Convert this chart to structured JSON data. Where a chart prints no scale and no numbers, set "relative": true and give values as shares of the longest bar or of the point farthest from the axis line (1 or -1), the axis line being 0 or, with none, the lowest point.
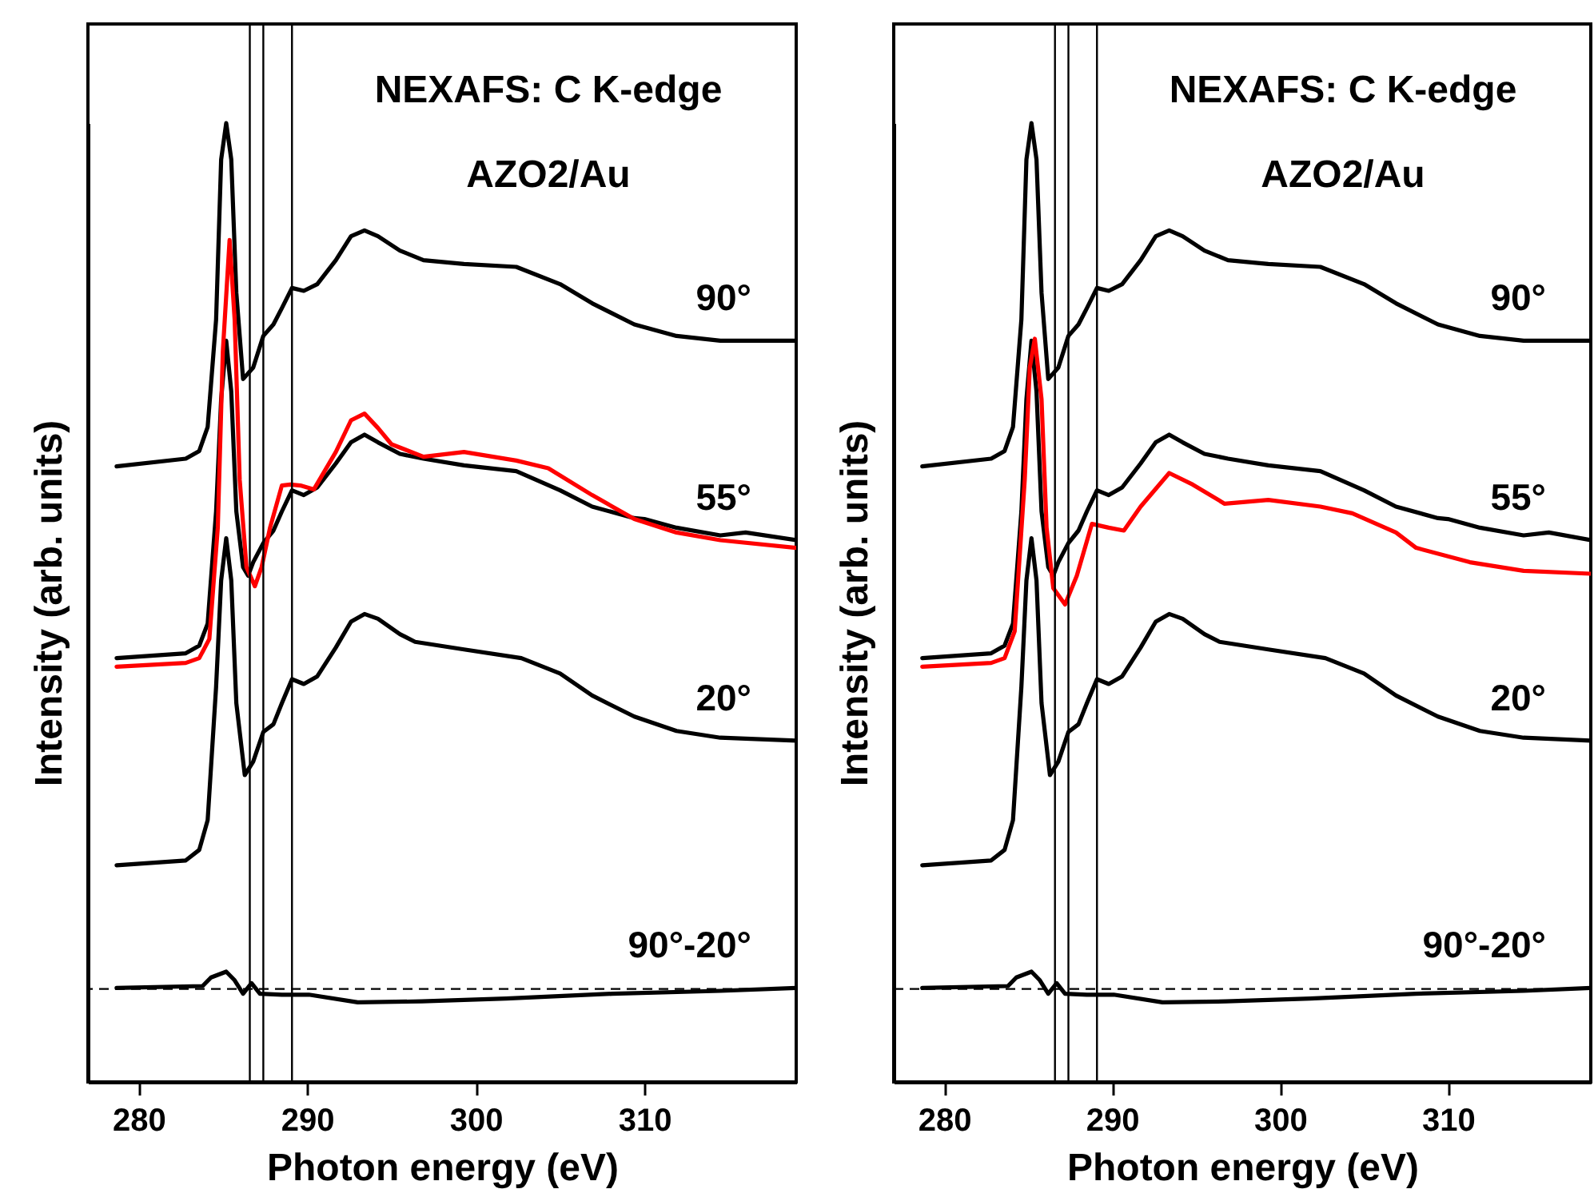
{
  "chart_data": [
    {
      "type": "line",
      "relative": true,
      "xlabel": "Photon energy (eV)",
      "ylabel": "Intensity (arb. units)",
      "xlim": [
        277,
        319
      ],
      "xticks": [
        280,
        290,
        300,
        310
      ],
      "marker": "none",
      "annotations": [
        "NEXAFS: C K-edge",
        "AZO2/Au"
      ],
      "ref_lines": [
        {
          "axis": "x",
          "value": 286.6
        },
        {
          "axis": "x",
          "value": 287.4
        },
        {
          "axis": "x",
          "value": 289.1
        },
        {
          "axis": "y",
          "value": 0.097,
          "line_style": "dashed"
        }
      ],
      "series": [
        {
          "name": "90°",
          "color": "#000000",
          "x": [
            278.7,
            282.8,
            283.6,
            284.1,
            284.6,
            284.9,
            285.2,
            285.5,
            285.8,
            286.2,
            286.8,
            287.4,
            288.0,
            288.5,
            289.1,
            289.8,
            290.6,
            291.7,
            292.6,
            293.4,
            294.2,
            295.5,
            296.9,
            299.3,
            302.4,
            305.0,
            306.9,
            309.4,
            311.9,
            314.5,
            319.0
          ],
          "values": [
            0.642,
            0.65,
            0.658,
            0.683,
            0.795,
            0.962,
            1,
            0.962,
            0.823,
            0.733,
            0.745,
            0.778,
            0.79,
            0.807,
            0.828,
            0.825,
            0.832,
            0.857,
            0.882,
            0.888,
            0.882,
            0.867,
            0.857,
            0.853,
            0.85,
            0.832,
            0.812,
            0.79,
            0.778,
            0.773,
            0.773
          ]
        },
        {
          "name": "55°",
          "color": "#000000",
          "x": [
            278.7,
            282.8,
            283.6,
            284.1,
            284.6,
            284.9,
            285.2,
            285.5,
            285.8,
            286.2,
            286.5,
            286.8,
            287.4,
            288.0,
            288.5,
            289.1,
            289.8,
            290.6,
            291.7,
            292.6,
            293.4,
            294.2,
            295.5,
            296.9,
            299.3,
            302.4,
            305.0,
            306.9,
            309.4,
            310.0,
            311.9,
            314.5,
            316.0,
            319.0
          ],
          "values": [
            0.442,
            0.447,
            0.455,
            0.478,
            0.595,
            0.712,
            0.773,
            0.72,
            0.595,
            0.537,
            0.528,
            0.542,
            0.562,
            0.575,
            0.595,
            0.617,
            0.612,
            0.62,
            0.645,
            0.667,
            0.675,
            0.667,
            0.655,
            0.65,
            0.643,
            0.637,
            0.617,
            0.6,
            0.588,
            0.587,
            0.578,
            0.57,
            0.573,
            0.565
          ]
        },
        {
          "color": "#ff0000",
          "x": [
            278.7,
            282.8,
            283.6,
            284.2,
            284.7,
            285.0,
            285.4,
            285.7,
            286.0,
            286.4,
            286.9,
            287.3,
            287.8,
            288.5,
            289.0,
            289.6,
            290.4,
            291.7,
            292.6,
            293.4,
            294.2,
            295.0,
            296.9,
            299.3,
            302.4,
            304.3,
            306.9,
            309.4,
            311.9,
            314.5,
            319.0
          ],
          "values": [
            0.433,
            0.437,
            0.442,
            0.462,
            0.578,
            0.762,
            0.878,
            0.795,
            0.628,
            0.537,
            0.517,
            0.537,
            0.578,
            0.622,
            0.623,
            0.622,
            0.618,
            0.657,
            0.69,
            0.697,
            0.682,
            0.665,
            0.652,
            0.657,
            0.648,
            0.64,
            0.612,
            0.587,
            0.573,
            0.565,
            0.557
          ]
        },
        {
          "name": "20°",
          "color": "#000000",
          "x": [
            278.7,
            282.8,
            283.6,
            284.1,
            284.6,
            284.9,
            285.2,
            285.5,
            285.8,
            286.3,
            286.8,
            287.4,
            288.0,
            288.5,
            289.1,
            289.8,
            290.6,
            291.7,
            292.6,
            293.4,
            294.2,
            295.5,
            296.4,
            299.3,
            302.7,
            305.0,
            306.9,
            309.4,
            311.9,
            314.5,
            319.0
          ],
          "values": [
            0.226,
            0.231,
            0.242,
            0.273,
            0.412,
            0.523,
            0.567,
            0.523,
            0.395,
            0.32,
            0.334,
            0.365,
            0.373,
            0.395,
            0.42,
            0.415,
            0.423,
            0.453,
            0.48,
            0.488,
            0.483,
            0.467,
            0.459,
            0.451,
            0.442,
            0.426,
            0.403,
            0.381,
            0.366,
            0.359,
            0.356
          ]
        },
        {
          "name": "90°-20°",
          "color": "#000000",
          "x": [
            278.7,
            283.8,
            284.3,
            285.2,
            285.7,
            286.2,
            286.7,
            287.2,
            288.5,
            290.1,
            293.0,
            296.8,
            301.8,
            308.1,
            314.5,
            319.0
          ],
          "values": [
            0.098,
            0.1,
            0.109,
            0.115,
            0.106,
            0.092,
            0.103,
            0.092,
            0.091,
            0.091,
            0.083,
            0.084,
            0.087,
            0.092,
            0.095,
            0.098
          ]
        }
      ]
    },
    {
      "type": "line",
      "relative": true,
      "xlabel": "Photon energy (eV)",
      "ylabel": "Intensity (arb. units)",
      "xlim": [
        277,
        318.5
      ],
      "xticks": [
        280,
        290,
        300,
        310
      ],
      "marker": "none",
      "annotations": [
        "NEXAFS: C K-edge",
        "AZO2/Au"
      ],
      "ref_lines": [
        {
          "axis": "x",
          "value": 286.6
        },
        {
          "axis": "x",
          "value": 287.4
        },
        {
          "axis": "x",
          "value": 289.1
        },
        {
          "axis": "y",
          "value": 0.097,
          "line_style": "dashed"
        }
      ],
      "series": [
        {
          "name": "90°",
          "color": "#000000",
          "x": [
            278.7,
            282.8,
            283.6,
            284.1,
            284.6,
            284.9,
            285.2,
            285.5,
            285.8,
            286.2,
            286.8,
            287.4,
            288.0,
            288.5,
            289.1,
            289.8,
            290.6,
            291.7,
            292.6,
            293.4,
            294.2,
            295.5,
            296.9,
            299.3,
            302.4,
            305.0,
            306.9,
            309.4,
            311.9,
            314.5,
            318.5
          ],
          "values": [
            0.642,
            0.65,
            0.658,
            0.683,
            0.795,
            0.962,
            1,
            0.962,
            0.823,
            0.733,
            0.745,
            0.778,
            0.79,
            0.807,
            0.828,
            0.825,
            0.832,
            0.857,
            0.882,
            0.888,
            0.882,
            0.867,
            0.857,
            0.853,
            0.85,
            0.832,
            0.812,
            0.79,
            0.778,
            0.773,
            0.773
          ]
        },
        {
          "name": "55°",
          "color": "#000000",
          "x": [
            278.7,
            282.8,
            283.6,
            284.1,
            284.6,
            284.9,
            285.2,
            285.5,
            285.8,
            286.2,
            286.5,
            286.8,
            287.4,
            288.0,
            288.5,
            289.1,
            289.8,
            290.6,
            291.7,
            292.6,
            293.4,
            294.2,
            295.5,
            296.9,
            299.3,
            302.4,
            305.0,
            306.9,
            309.4,
            310.0,
            311.9,
            314.5,
            316.0,
            318.5
          ],
          "values": [
            0.442,
            0.447,
            0.455,
            0.478,
            0.595,
            0.712,
            0.773,
            0.72,
            0.595,
            0.537,
            0.528,
            0.542,
            0.562,
            0.575,
            0.595,
            0.617,
            0.612,
            0.62,
            0.645,
            0.667,
            0.675,
            0.667,
            0.655,
            0.65,
            0.643,
            0.637,
            0.617,
            0.6,
            0.588,
            0.587,
            0.578,
            0.57,
            0.573,
            0.565
          ]
        },
        {
          "color": "#ff0000",
          "x": [
            278.7,
            282.8,
            283.6,
            284.2,
            284.8,
            285.1,
            285.4,
            285.8,
            286.1,
            286.5,
            287.2,
            287.9,
            288.8,
            289.8,
            290.7,
            291.7,
            293.4,
            294.8,
            296.7,
            299.3,
            302.4,
            304.3,
            306.9,
            308.1,
            311.3,
            314.5,
            318.5
          ],
          "values": [
            0.433,
            0.437,
            0.442,
            0.47,
            0.628,
            0.745,
            0.775,
            0.712,
            0.578,
            0.515,
            0.498,
            0.528,
            0.582,
            0.578,
            0.575,
            0.6,
            0.635,
            0.623,
            0.603,
            0.607,
            0.6,
            0.593,
            0.573,
            0.557,
            0.542,
            0.533,
            0.53
          ]
        },
        {
          "name": "20°",
          "color": "#000000",
          "x": [
            278.7,
            282.8,
            283.6,
            284.1,
            284.6,
            284.9,
            285.2,
            285.5,
            285.8,
            286.3,
            286.8,
            287.4,
            288.0,
            288.5,
            289.1,
            289.8,
            290.6,
            291.7,
            292.6,
            293.4,
            294.2,
            295.5,
            296.4,
            299.3,
            302.7,
            305.0,
            306.9,
            309.4,
            311.9,
            314.5,
            318.5
          ],
          "values": [
            0.226,
            0.231,
            0.242,
            0.273,
            0.412,
            0.523,
            0.567,
            0.523,
            0.395,
            0.32,
            0.334,
            0.365,
            0.373,
            0.395,
            0.42,
            0.415,
            0.423,
            0.453,
            0.48,
            0.488,
            0.483,
            0.467,
            0.459,
            0.451,
            0.442,
            0.426,
            0.403,
            0.381,
            0.366,
            0.359,
            0.356
          ]
        },
        {
          "name": "90°-20°",
          "color": "#000000",
          "x": [
            278.7,
            283.8,
            284.3,
            285.2,
            285.7,
            286.2,
            286.7,
            287.2,
            288.5,
            290.1,
            293.0,
            296.8,
            301.8,
            308.1,
            314.5,
            318.5
          ],
          "values": [
            0.098,
            0.1,
            0.109,
            0.115,
            0.106,
            0.092,
            0.103,
            0.092,
            0.091,
            0.091,
            0.083,
            0.084,
            0.087,
            0.092,
            0.095,
            0.098
          ]
        }
      ]
    }
  ]
}
